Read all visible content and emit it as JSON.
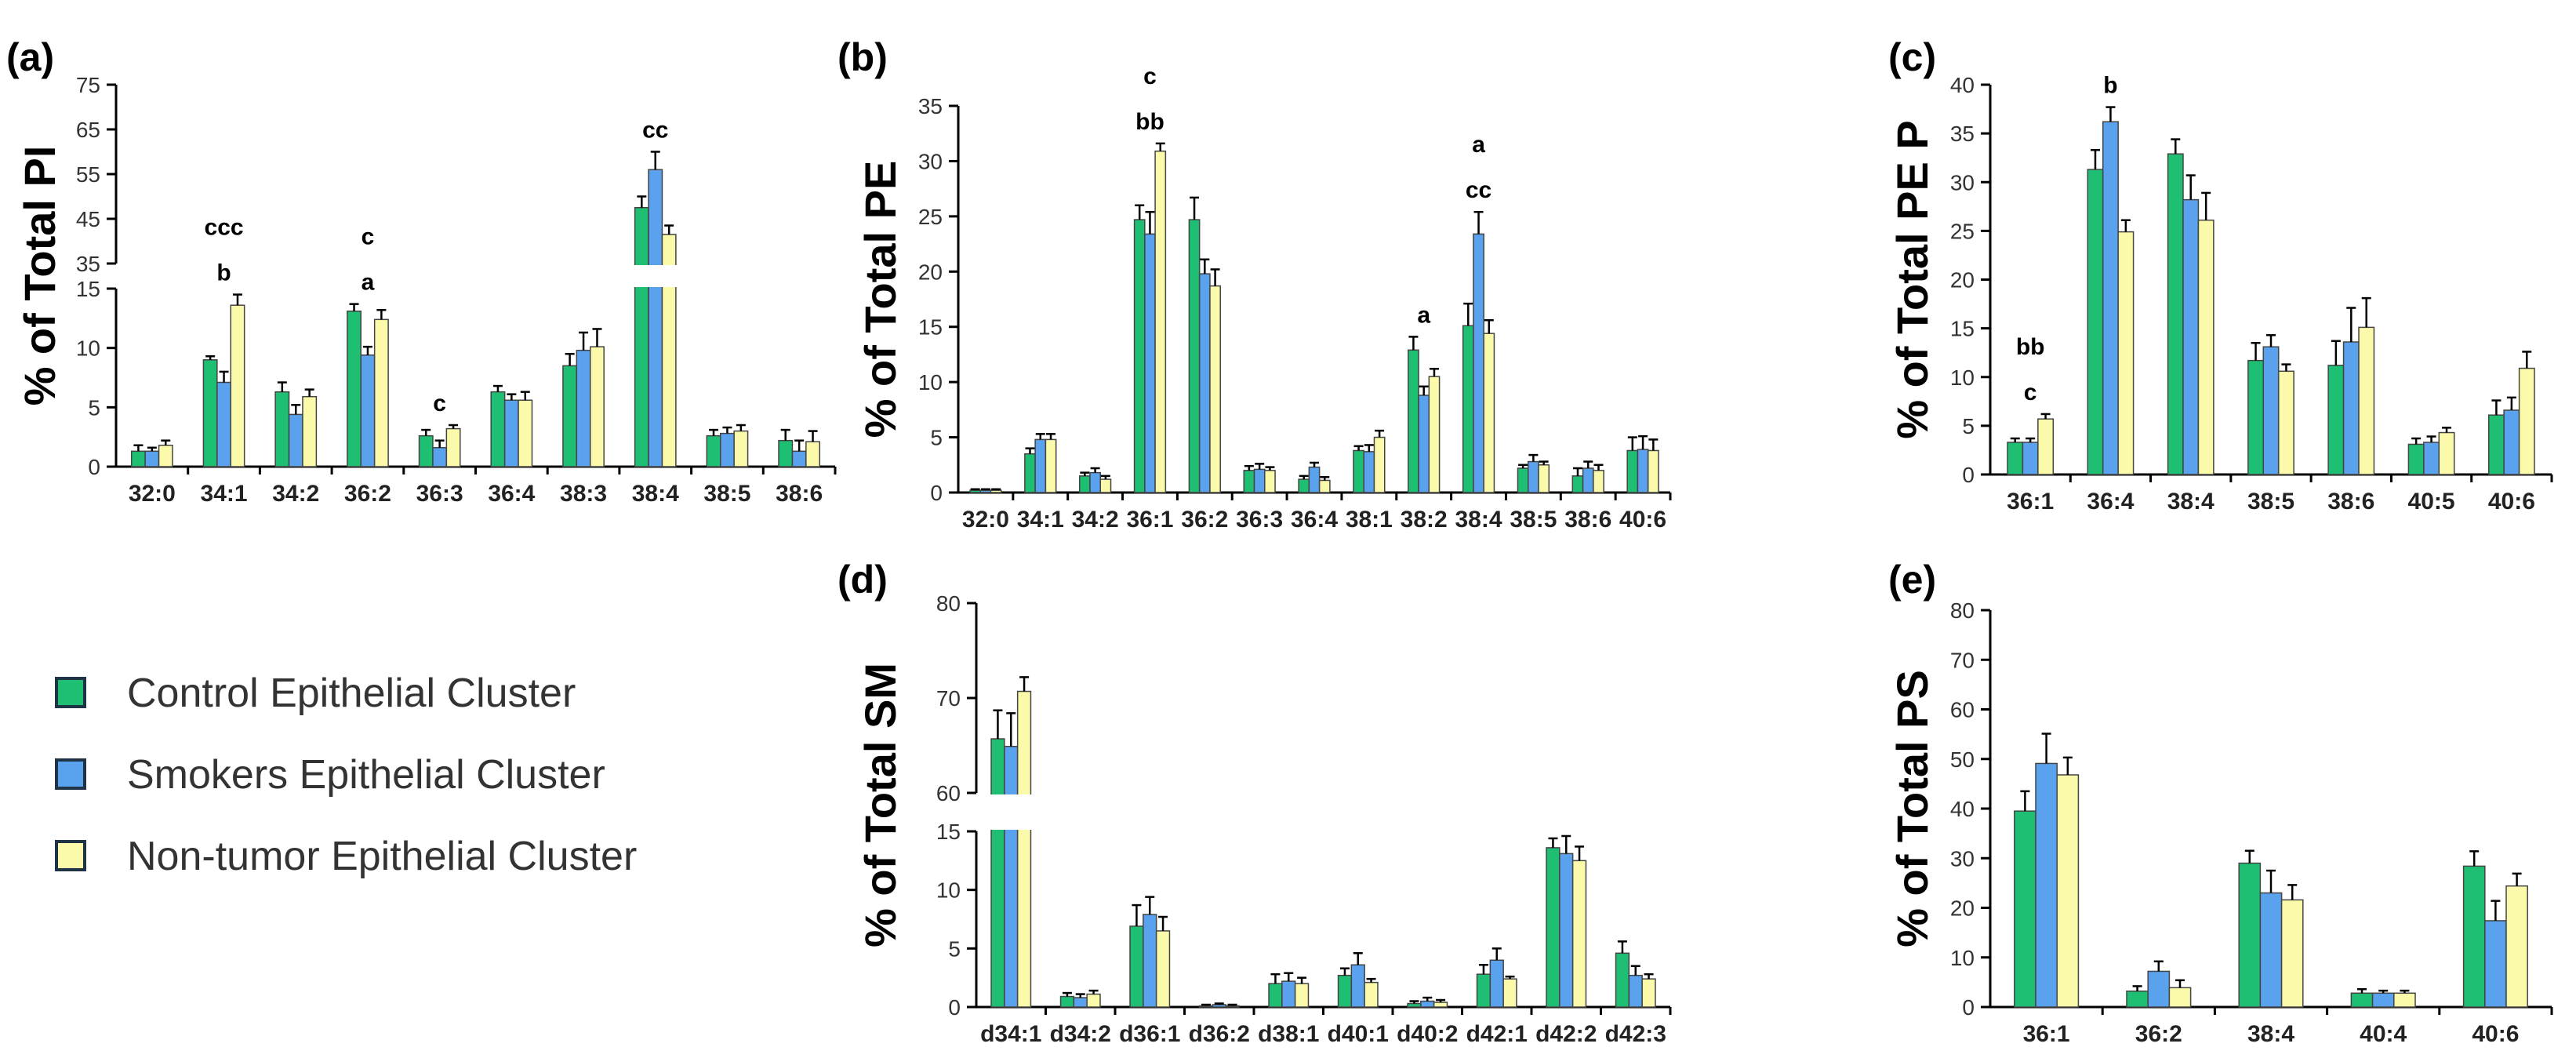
{
  "legend": {
    "items": [
      {
        "label": "Control Epithelial Cluster",
        "color": "#1fbf73"
      },
      {
        "label": "Smokers Epithelial Cluster",
        "color": "#5aa2ee"
      },
      {
        "label": "Non-tumor Epithelial Cluster",
        "color": "#fafaaa"
      }
    ]
  },
  "chart_data": [
    {
      "panel": "(a)",
      "type": "bar",
      "ylabel": "% of Total PI",
      "categories": [
        "32:0",
        "34:1",
        "34:2",
        "36:2",
        "36:3",
        "36:4",
        "38:3",
        "38:4",
        "38:5",
        "38:6"
      ],
      "series": [
        {
          "name": "Control Epithelial Cluster",
          "values": [
            1.3,
            9.0,
            6.3,
            13.1,
            2.6,
            6.3,
            8.5,
            47.5,
            2.6,
            2.2
          ],
          "errors": [
            0.5,
            0.3,
            0.8,
            0.6,
            0.5,
            0.5,
            1.0,
            2.5,
            0.5,
            0.9
          ]
        },
        {
          "name": "Smokers Epithelial Cluster",
          "values": [
            1.3,
            7.1,
            4.4,
            9.4,
            1.6,
            5.6,
            9.8,
            56.0,
            2.8,
            1.3
          ],
          "errors": [
            0.3,
            0.9,
            0.8,
            0.7,
            0.6,
            0.5,
            1.5,
            4.0,
            0.5,
            0.9
          ]
        },
        {
          "name": "Non-tumor Epithelial Cluster",
          "values": [
            1.8,
            13.6,
            5.9,
            12.4,
            3.2,
            5.6,
            10.1,
            41.5,
            3.0,
            2.1
          ],
          "errors": [
            0.4,
            0.9,
            0.6,
            0.8,
            0.3,
            0.7,
            1.5,
            2.0,
            0.5,
            0.9
          ]
        }
      ],
      "axis_break": {
        "lower": [
          0,
          15
        ],
        "upper": [
          35,
          75
        ]
      },
      "yticks": [
        0,
        5,
        10,
        15,
        35,
        45,
        55,
        65,
        75
      ],
      "annotations": [
        {
          "category": "34:1",
          "lines": [
            "b",
            "ccc"
          ]
        },
        {
          "category": "36:2",
          "lines": [
            "a",
            "c"
          ]
        },
        {
          "category": "36:3",
          "lines": [
            "c"
          ]
        },
        {
          "category": "38:4",
          "lines": [
            "cc"
          ]
        }
      ]
    },
    {
      "panel": "(b)",
      "type": "bar",
      "ylabel": "% of Total PE",
      "categories": [
        "32:0",
        "34:1",
        "34:2",
        "36:1",
        "36:2",
        "36:3",
        "36:4",
        "38:1",
        "38:2",
        "38:4",
        "38:5",
        "38:6",
        "40:6"
      ],
      "series": [
        {
          "name": "Control Epithelial Cluster",
          "values": [
            0.2,
            3.5,
            1.5,
            24.7,
            24.7,
            2.0,
            1.2,
            3.8,
            12.9,
            15.1,
            2.2,
            1.5,
            3.8
          ],
          "errors": [
            0.1,
            0.5,
            0.3,
            1.3,
            2.0,
            0.4,
            0.3,
            0.4,
            1.2,
            2.0,
            0.3,
            0.7,
            1.2
          ]
        },
        {
          "name": "Smokers Epithelial Cluster",
          "values": [
            0.2,
            4.8,
            1.8,
            23.4,
            19.8,
            2.1,
            2.3,
            3.7,
            8.8,
            23.4,
            2.8,
            2.2,
            3.9
          ],
          "errors": [
            0.1,
            0.5,
            0.4,
            2.0,
            1.3,
            0.5,
            0.4,
            0.6,
            0.8,
            2.0,
            0.6,
            0.6,
            1.2
          ]
        },
        {
          "name": "Non-tumor Epithelial Cluster",
          "values": [
            0.2,
            4.8,
            1.2,
            30.9,
            18.7,
            2.0,
            1.1,
            5.0,
            10.5,
            14.4,
            2.5,
            2.0,
            3.8
          ],
          "errors": [
            0.1,
            0.5,
            0.3,
            0.7,
            1.5,
            0.3,
            0.3,
            0.6,
            0.7,
            1.2,
            0.3,
            0.5,
            1.0
          ]
        }
      ],
      "ylim": [
        0,
        35
      ],
      "yticks": [
        0,
        5,
        10,
        15,
        20,
        25,
        30,
        35
      ],
      "annotations": [
        {
          "category": "36:1",
          "lines": [
            "bb",
            "c"
          ]
        },
        {
          "category": "38:2",
          "lines": [
            "a"
          ]
        },
        {
          "category": "38:4",
          "lines": [
            "cc",
            "a"
          ]
        }
      ]
    },
    {
      "panel": "(c)",
      "type": "bar",
      "ylabel": "% of Total PE P",
      "categories": [
        "36:1",
        "36:4",
        "38:4",
        "38:5",
        "38:6",
        "40:5",
        "40:6"
      ],
      "series": [
        {
          "name": "Control Epithelial Cluster",
          "values": [
            3.3,
            31.3,
            32.9,
            11.7,
            11.2,
            3.1,
            6.1
          ],
          "errors": [
            0.4,
            2.0,
            1.5,
            1.8,
            2.5,
            0.6,
            1.5
          ]
        },
        {
          "name": "Smokers Epithelial Cluster",
          "values": [
            3.3,
            36.2,
            28.2,
            13.1,
            13.6,
            3.3,
            6.6
          ],
          "errors": [
            0.4,
            1.5,
            2.5,
            1.2,
            3.5,
            0.6,
            1.3
          ]
        },
        {
          "name": "Non-tumor Epithelial Cluster",
          "values": [
            5.7,
            24.9,
            26.1,
            10.6,
            15.1,
            4.3,
            10.9
          ],
          "errors": [
            0.5,
            1.2,
            2.8,
            0.7,
            3.0,
            0.5,
            1.7
          ]
        }
      ],
      "ylim": [
        0,
        40
      ],
      "yticks": [
        0,
        5,
        10,
        15,
        20,
        25,
        30,
        35,
        40
      ],
      "annotations": [
        {
          "category": "36:1",
          "lines": [
            "c",
            "bb"
          ]
        },
        {
          "category": "36:4",
          "lines": [
            "b"
          ]
        }
      ]
    },
    {
      "panel": "(d)",
      "type": "bar",
      "ylabel": "% of Total SM",
      "categories": [
        "d34:1",
        "d34:2",
        "d36:1",
        "d36:2",
        "d38:1",
        "d40:1",
        "d40:2",
        "d42:1",
        "d42:2",
        "d42:3"
      ],
      "series": [
        {
          "name": "Control Epithelial Cluster",
          "values": [
            65.7,
            0.9,
            6.9,
            0.1,
            2.0,
            2.7,
            0.3,
            2.8,
            13.6,
            4.6
          ],
          "errors": [
            3.0,
            0.3,
            1.8,
            0.1,
            0.8,
            0.6,
            0.2,
            0.8,
            0.8,
            1.0
          ]
        },
        {
          "name": "Smokers Epithelial Cluster",
          "values": [
            64.9,
            0.8,
            7.9,
            0.2,
            2.2,
            3.6,
            0.5,
            4.0,
            13.1,
            2.7
          ],
          "errors": [
            3.5,
            0.3,
            1.5,
            0.1,
            0.7,
            1.0,
            0.3,
            1.0,
            1.5,
            0.8
          ]
        },
        {
          "name": "Non-tumor Epithelial Cluster",
          "values": [
            70.7,
            1.1,
            6.5,
            0.1,
            2.0,
            2.1,
            0.4,
            2.4,
            12.5,
            2.4
          ],
          "errors": [
            1.5,
            0.3,
            1.2,
            0.1,
            0.5,
            0.3,
            0.2,
            0.2,
            1.2,
            0.4
          ]
        }
      ],
      "axis_break": {
        "lower": [
          0,
          15
        ],
        "upper": [
          60,
          80
        ]
      },
      "yticks": [
        0,
        5,
        10,
        15,
        60,
        70,
        80
      ]
    },
    {
      "panel": "(e)",
      "type": "bar",
      "ylabel": "% of Total PS",
      "categories": [
        "36:1",
        "36:2",
        "38:4",
        "40:4",
        "40:6"
      ],
      "series": [
        {
          "name": "Control Epithelial Cluster",
          "values": [
            39.5,
            3.2,
            29.0,
            2.8,
            28.4
          ],
          "errors": [
            4.0,
            1.0,
            2.5,
            0.8,
            3.0
          ]
        },
        {
          "name": "Smokers Epithelial Cluster",
          "values": [
            49.1,
            7.2,
            23.0,
            2.8,
            17.4
          ],
          "errors": [
            6.0,
            2.0,
            4.5,
            0.5,
            4.0
          ]
        },
        {
          "name": "Non-tumor Epithelial Cluster",
          "values": [
            46.8,
            3.9,
            21.6,
            2.8,
            24.4
          ],
          "errors": [
            3.5,
            1.5,
            3.0,
            0.5,
            2.5
          ]
        }
      ],
      "ylim": [
        0,
        80
      ],
      "yticks": [
        0,
        10,
        20,
        30,
        40,
        50,
        60,
        70,
        80
      ]
    }
  ]
}
